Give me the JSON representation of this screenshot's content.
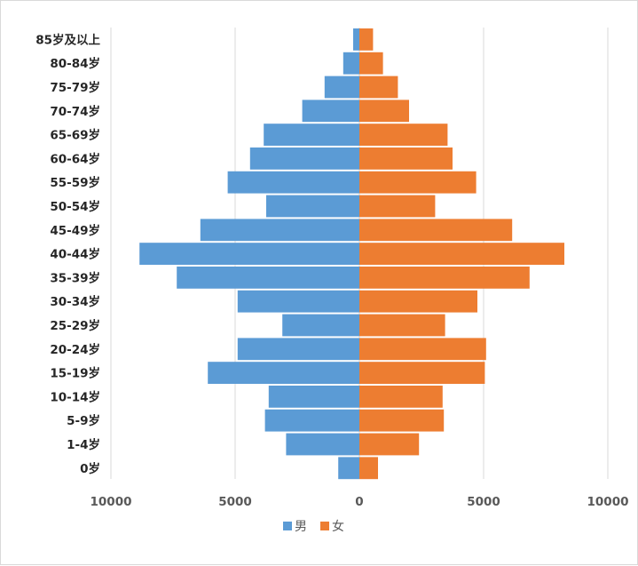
{
  "chart_data": {
    "type": "bar",
    "orientation": "horizontal-population-pyramid",
    "categories": [
      "0岁",
      "1-4岁",
      "5-9岁",
      "10-14岁",
      "15-19岁",
      "20-24岁",
      "25-29岁",
      "30-34岁",
      "35-39岁",
      "40-44岁",
      "45-49岁",
      "50-54岁",
      "55-59岁",
      "60-64岁",
      "65-69岁",
      "70-74岁",
      "75-79岁",
      "80-84岁",
      "85岁及以上"
    ],
    "series": [
      {
        "name": "男",
        "color": "#5B9BD5",
        "side": "left",
        "values": [
          850,
          2950,
          3800,
          3650,
          6100,
          4900,
          3100,
          4900,
          7350,
          8850,
          6400,
          3750,
          5300,
          4400,
          3850,
          2300,
          1400,
          650,
          250
        ]
      },
      {
        "name": "女",
        "color": "#ED7D31",
        "side": "right",
        "values": [
          750,
          2400,
          3400,
          3350,
          5050,
          5100,
          3450,
          4750,
          6850,
          8250,
          6150,
          3050,
          4700,
          3750,
          3550,
          2000,
          1550,
          950,
          550
        ]
      }
    ],
    "x_ticks": [
      "10000",
      "5000",
      "0",
      "5000",
      "10000"
    ],
    "x_tick_values": [
      -10000,
      -5000,
      0,
      5000,
      10000
    ],
    "xlim": [
      -10000,
      10000
    ],
    "grid": "vertical",
    "gridline_color": "#d9d9d9",
    "legend_position": "bottom"
  }
}
